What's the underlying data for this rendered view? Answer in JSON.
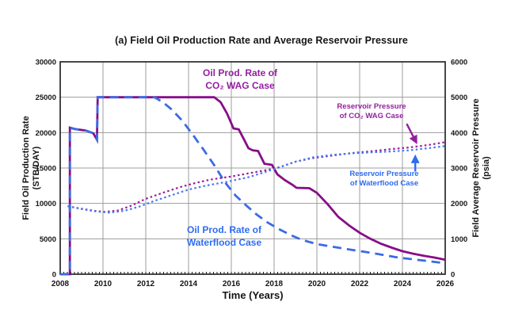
{
  "figure": {
    "title": "(a) Field Oil Production Rate and Average Reservoir Pressure"
  },
  "chart_data": {
    "type": "line",
    "title": "(a) Field Oil Production Rate and Average Reservoir Pressure",
    "grid": true,
    "legend_position": "in-plot annotations",
    "colors": {
      "co2_line": "#870e87",
      "co2_text": "#931fa0",
      "waterflood_line": "#3b6be4",
      "waterflood_text": "#2e6cf2",
      "grid": "#9c9c9c",
      "axis": "#1a1a1a"
    },
    "x_axis": {
      "label": "Time (Years)",
      "min": 2008,
      "max": 2026,
      "ticks": [
        2008,
        2010,
        2012,
        2014,
        2016,
        2018,
        2020,
        2022,
        2024,
        2026
      ]
    },
    "y_left": {
      "label_line1": "Field Oil Production Rate",
      "label_line2": "(STB/DAY)",
      "min": 0,
      "max": 30000,
      "ticks": [
        0,
        5000,
        10000,
        15000,
        20000,
        25000,
        30000
      ]
    },
    "y_right": {
      "label_line1": "Field Average Reservoir Pressure",
      "label_line2": "(psia)",
      "min": 0,
      "max": 6000,
      "ticks": [
        0,
        1000,
        2000,
        3000,
        4000,
        5000,
        6000
      ]
    },
    "series": [
      {
        "id": "co2_wag_rate",
        "name": "Oil Prod. Rate of CO₂ WAG Case",
        "axis": "left",
        "style": "solid",
        "color": "#870e87",
        "width": 2.8,
        "points": [
          [
            2008.0,
            0
          ],
          [
            2008.45,
            0
          ],
          [
            2008.45,
            20700
          ],
          [
            2008.7,
            20500
          ],
          [
            2009.2,
            20300
          ],
          [
            2009.55,
            19900
          ],
          [
            2009.72,
            19000
          ],
          [
            2009.75,
            25000
          ],
          [
            2015.2,
            25000
          ],
          [
            2015.5,
            24300
          ],
          [
            2015.8,
            22700
          ],
          [
            2016.0,
            21300
          ],
          [
            2016.1,
            20600
          ],
          [
            2016.35,
            20450
          ],
          [
            2016.6,
            19000
          ],
          [
            2016.8,
            17800
          ],
          [
            2017.0,
            17500
          ],
          [
            2017.25,
            17400
          ],
          [
            2017.55,
            15600
          ],
          [
            2017.9,
            15450
          ],
          [
            2018.15,
            14100
          ],
          [
            2018.5,
            13300
          ],
          [
            2018.85,
            12650
          ],
          [
            2019.05,
            12200
          ],
          [
            2019.65,
            12150
          ],
          [
            2020.0,
            11500
          ],
          [
            2020.5,
            9900
          ],
          [
            2021.0,
            8100
          ],
          [
            2021.5,
            6900
          ],
          [
            2022.0,
            5850
          ],
          [
            2022.5,
            5000
          ],
          [
            2023.0,
            4300
          ],
          [
            2023.5,
            3750
          ],
          [
            2024.0,
            3250
          ],
          [
            2024.5,
            2900
          ],
          [
            2025.0,
            2600
          ],
          [
            2025.5,
            2350
          ],
          [
            2026.0,
            2050
          ]
        ]
      },
      {
        "id": "waterflood_rate",
        "name": "Oil Prod. Rate of Waterflood Case",
        "axis": "left",
        "style": "dashed",
        "color": "#3b6be4",
        "width": 2.8,
        "points": [
          [
            2008.0,
            0
          ],
          [
            2008.45,
            0
          ],
          [
            2008.45,
            20700
          ],
          [
            2008.7,
            20500
          ],
          [
            2009.2,
            20300
          ],
          [
            2009.55,
            19900
          ],
          [
            2009.72,
            19000
          ],
          [
            2009.75,
            25000
          ],
          [
            2012.4,
            25000
          ],
          [
            2012.8,
            24300
          ],
          [
            2013.2,
            23300
          ],
          [
            2013.7,
            21700
          ],
          [
            2014.2,
            19700
          ],
          [
            2014.7,
            17600
          ],
          [
            2015.2,
            15400
          ],
          [
            2015.7,
            13000
          ],
          [
            2016.2,
            11100
          ],
          [
            2016.7,
            9700
          ],
          [
            2017.2,
            8400
          ],
          [
            2017.7,
            7300
          ],
          [
            2018.3,
            6260
          ],
          [
            2018.8,
            5500
          ],
          [
            2019.3,
            4850
          ],
          [
            2020.0,
            4250
          ],
          [
            2020.7,
            3900
          ],
          [
            2021.5,
            3500
          ],
          [
            2022.2,
            3180
          ],
          [
            2023.0,
            2780
          ],
          [
            2023.8,
            2350
          ],
          [
            2024.5,
            2100
          ],
          [
            2025.2,
            1850
          ],
          [
            2026.0,
            1550
          ]
        ]
      },
      {
        "id": "co2_wag_pressure",
        "name": "Reservoir Pressure of CO₂ WAG Case",
        "axis": "right",
        "style": "dotted",
        "color": "#9a1c9a",
        "width": 2.2,
        "points": [
          [
            2008.35,
            1920
          ],
          [
            2009.0,
            1850
          ],
          [
            2009.6,
            1790
          ],
          [
            2010.1,
            1760
          ],
          [
            2010.7,
            1800
          ],
          [
            2011.3,
            1930
          ],
          [
            2012.0,
            2130
          ],
          [
            2012.7,
            2280
          ],
          [
            2013.5,
            2440
          ],
          [
            2014.2,
            2560
          ],
          [
            2015.0,
            2670
          ],
          [
            2016.0,
            2760
          ],
          [
            2017.0,
            2870
          ],
          [
            2017.8,
            2960
          ],
          [
            2018.3,
            3030
          ],
          [
            2019.0,
            3180
          ],
          [
            2019.8,
            3280
          ],
          [
            2020.7,
            3350
          ],
          [
            2021.6,
            3420
          ],
          [
            2022.5,
            3470
          ],
          [
            2023.4,
            3530
          ],
          [
            2024.3,
            3580
          ],
          [
            2025.2,
            3650
          ],
          [
            2026.0,
            3730
          ]
        ]
      },
      {
        "id": "waterflood_pressure",
        "name": "Reservoir Pressure of Waterflood Case",
        "axis": "right",
        "style": "dotted",
        "color": "#4477ee",
        "width": 2.2,
        "points": [
          [
            2008.35,
            1920
          ],
          [
            2009.0,
            1840
          ],
          [
            2009.6,
            1780
          ],
          [
            2010.3,
            1740
          ],
          [
            2011.0,
            1790
          ],
          [
            2011.7,
            1910
          ],
          [
            2012.4,
            2070
          ],
          [
            2013.2,
            2230
          ],
          [
            2014.0,
            2390
          ],
          [
            2014.8,
            2500
          ],
          [
            2015.8,
            2610
          ],
          [
            2016.8,
            2740
          ],
          [
            2017.6,
            2890
          ],
          [
            2018.2,
            3010
          ],
          [
            2018.9,
            3160
          ],
          [
            2019.8,
            3300
          ],
          [
            2020.7,
            3370
          ],
          [
            2021.6,
            3415
          ],
          [
            2022.5,
            3440
          ],
          [
            2023.4,
            3465
          ],
          [
            2024.3,
            3500
          ],
          [
            2025.2,
            3560
          ],
          [
            2026.0,
            3620
          ]
        ]
      }
    ],
    "annotations": [
      {
        "id": "co2_rate_label",
        "lines": [
          "Oil Prod. Rate of",
          "CO₂ WAG Case"
        ],
        "color_role": "co2_text"
      },
      {
        "id": "waterflood_rate_label",
        "lines": [
          "Oil Prod. Rate of",
          "Waterflood Case"
        ],
        "color_role": "waterflood_text"
      },
      {
        "id": "co2_pressure_label",
        "lines": [
          "Reservoir Pressure",
          "of CO₂ WAG Case"
        ],
        "color_role": "co2_text",
        "arrow": {
          "axis": "right",
          "from": [
            2024.2,
            4250
          ],
          "to": [
            2024.65,
            3720
          ]
        }
      },
      {
        "id": "waterflood_pressure_label",
        "lines": [
          "Reservoir Pressure",
          "of Waterflood Case"
        ],
        "color_role": "waterflood_text",
        "arrow": {
          "axis": "right",
          "from": [
            2024.6,
            2900
          ],
          "to": [
            2024.6,
            3330
          ]
        }
      }
    ]
  }
}
